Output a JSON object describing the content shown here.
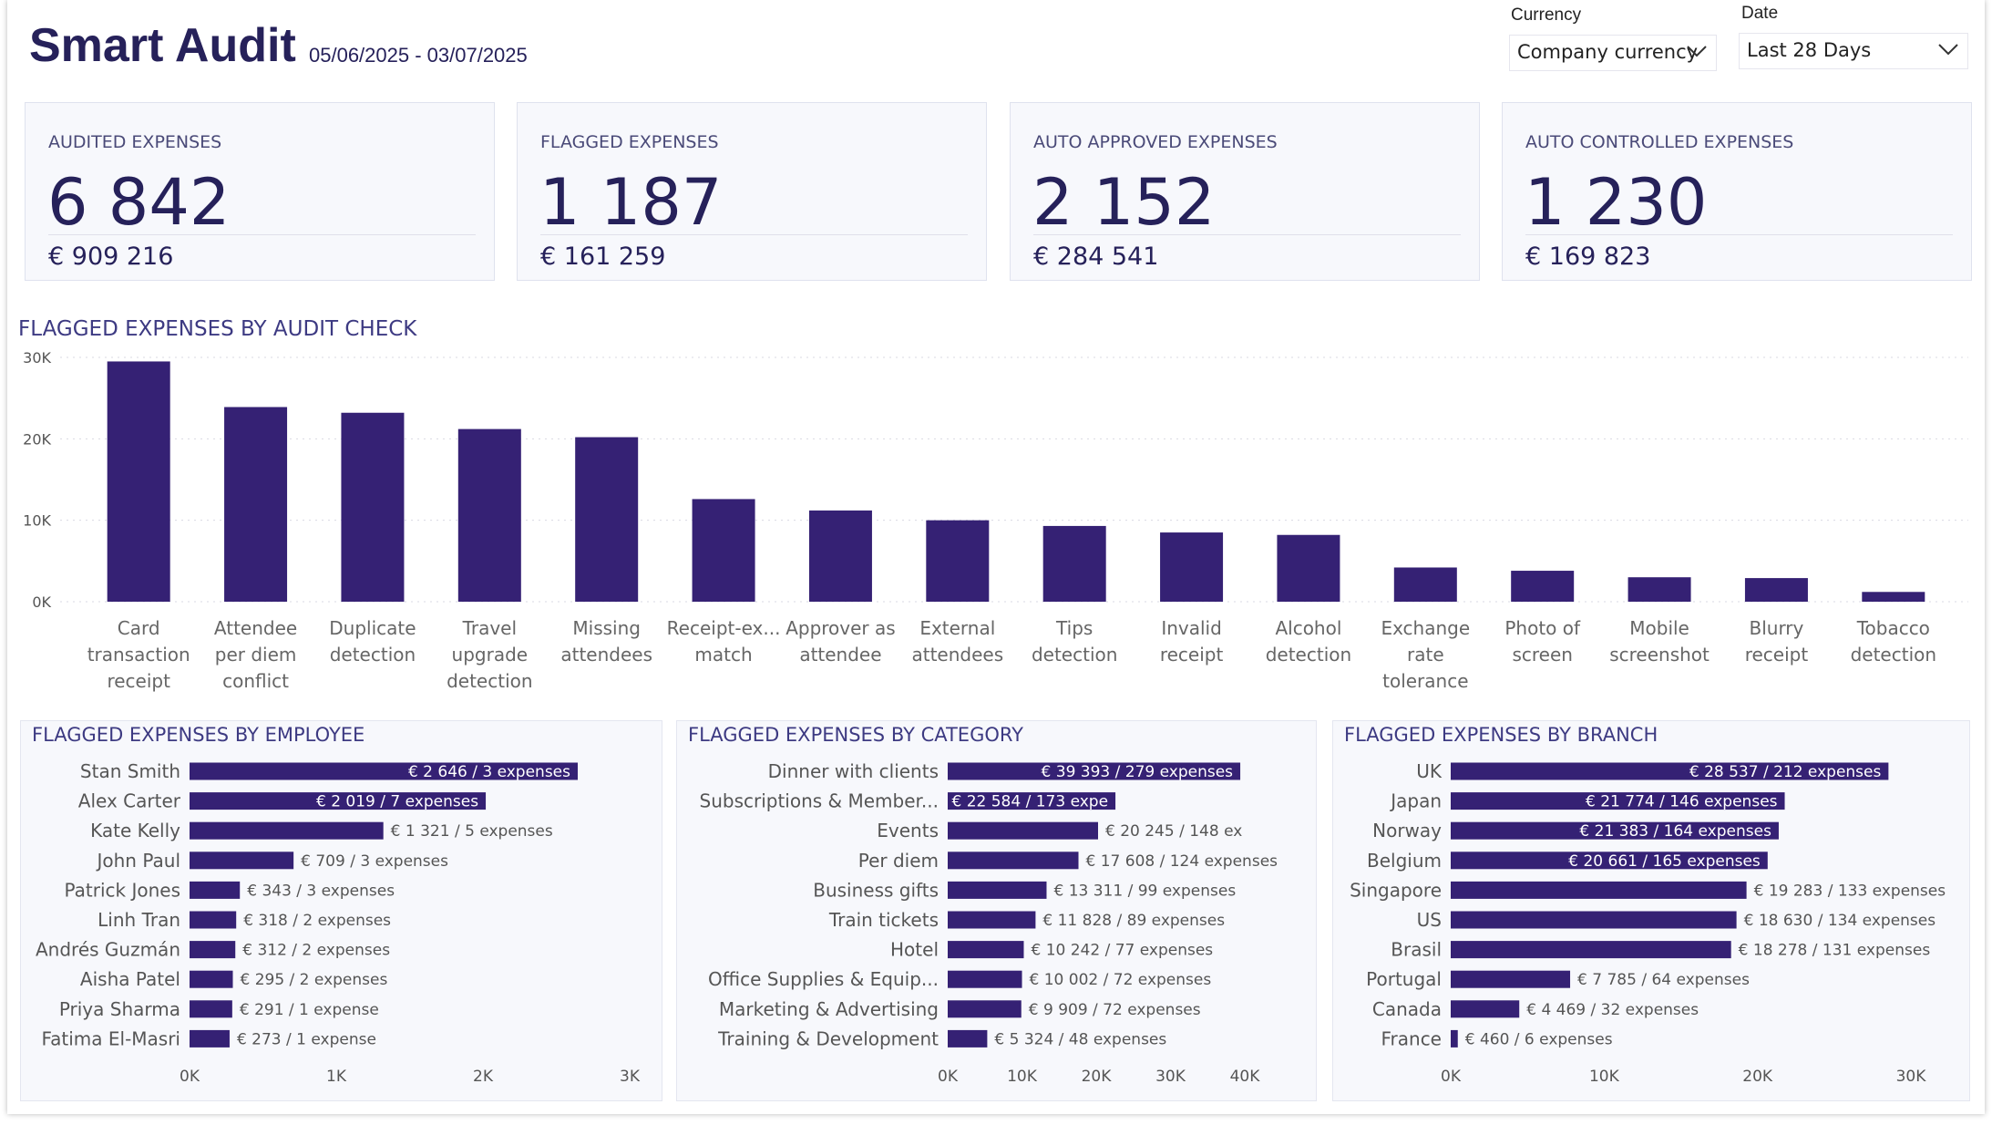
{
  "header": {
    "title": "Smart Audit",
    "date_range": "05/06/2025 - 03/07/2025"
  },
  "filters": {
    "currency": {
      "label": "Currency",
      "value": "Company currency"
    },
    "date": {
      "label": "Date",
      "value": "Last 28 Days"
    }
  },
  "kpis": [
    {
      "label": "AUDITED EXPENSES",
      "count": "6 842",
      "amount": "€ 909 216"
    },
    {
      "label": "FLAGGED EXPENSES",
      "count": "1 187",
      "amount": "€ 161 259"
    },
    {
      "label": "AUTO APPROVED EXPENSES",
      "count": "2 152",
      "amount": "€ 284 541"
    },
    {
      "label": "AUTO CONTROLLED EXPENSES",
      "count": "1 230",
      "amount": "€ 169 823"
    }
  ],
  "colors": {
    "bar": "#352174",
    "text": "#26215a",
    "panel_bg": "#f7f8fc",
    "grid": "#d9d9e3"
  },
  "chart_data": [
    {
      "type": "bar",
      "title": "FLAGGED EXPENSES BY AUDIT CHECK",
      "categories": [
        [
          "Card",
          "transaction",
          "receipt"
        ],
        [
          "Attendee",
          "per diem",
          "conflict"
        ],
        [
          "Duplicate",
          "detection"
        ],
        [
          "Travel",
          "upgrade",
          "detection"
        ],
        [
          "Missing",
          "attendees"
        ],
        [
          "Receipt-ex...",
          "match"
        ],
        [
          "Approver as",
          "attendee"
        ],
        [
          "External",
          "attendees"
        ],
        [
          "Tips",
          "detection"
        ],
        [
          "Invalid",
          "receipt"
        ],
        [
          "Alcohol",
          "detection"
        ],
        [
          "Exchange",
          "rate",
          "tolerance"
        ],
        [
          "Photo of",
          "screen"
        ],
        [
          "Mobile",
          "screenshot"
        ],
        [
          "Blurry",
          "receipt"
        ],
        [
          "Tobacco",
          "detection"
        ]
      ],
      "values": [
        29500,
        23900,
        23200,
        21200,
        20200,
        12600,
        11200,
        10000,
        9300,
        8500,
        8200,
        4200,
        3800,
        3000,
        2900,
        1200
      ],
      "yticks": [
        "0K",
        "10K",
        "20K",
        "30K"
      ],
      "ylim": [
        0,
        30000
      ],
      "grid": true
    },
    {
      "type": "bar",
      "title": "FLAGGED EXPENSES BY EMPLOYEE",
      "orientation": "horizontal",
      "categories": [
        "Stan Smith",
        "Alex Carter",
        "Kate Kelly",
        "John Paul",
        "Patrick Jones",
        "Linh Tran",
        "Andrés Guzmán",
        "Aisha Patel",
        "Priya Sharma",
        "Fatima El-Masri"
      ],
      "values": [
        2646,
        2019,
        1321,
        709,
        343,
        318,
        312,
        295,
        291,
        273
      ],
      "labels": [
        "€ 2 646 / 3 expenses",
        "€ 2 019 / 7 expenses",
        "€ 1 321 / 5 expenses",
        "€ 709 / 3 expenses",
        "€ 343 / 3 expenses",
        "€ 318 / 2 expenses",
        "€ 312 / 2 expenses",
        "€ 295 / 2 expenses",
        "€ 291 / 1 expense",
        "€ 273 / 1 expense"
      ],
      "xticks": [
        "0K",
        "1K",
        "2K",
        "3K"
      ],
      "xlim": [
        0,
        3000
      ]
    },
    {
      "type": "bar",
      "title": "FLAGGED EXPENSES BY CATEGORY",
      "orientation": "horizontal",
      "categories": [
        "Dinner with clients",
        "Subscriptions & Member...",
        "Events",
        "Per diem",
        "Business gifts",
        "Train tickets",
        "Hotel",
        "Office Supplies & Equip...",
        "Marketing & Advertising",
        "Training & Development"
      ],
      "values": [
        39393,
        22584,
        20245,
        17608,
        13311,
        11828,
        10242,
        10002,
        9909,
        5324
      ],
      "labels": [
        "€ 39 393 / 279 expenses",
        "€ 22 584 / 173 expe",
        "€ 20 245 / 148 ex",
        "€ 17 608 / 124 expenses",
        "€ 13 311 / 99 expenses",
        "€ 11 828 / 89 expenses",
        "€ 10 242 / 77 expenses",
        "€ 10 002 / 72 expenses",
        "€ 9 909 / 72 expenses",
        "€ 5 324 / 48 expenses"
      ],
      "xticks": [
        "0K",
        "10K",
        "20K",
        "30K",
        "40K"
      ],
      "xlim": [
        0,
        40000
      ]
    },
    {
      "type": "bar",
      "title": "FLAGGED EXPENSES BY BRANCH",
      "orientation": "horizontal",
      "categories": [
        "UK",
        "Japan",
        "Norway",
        "Belgium",
        "Singapore",
        "US",
        "Brasil",
        "Portugal",
        "Canada",
        "France"
      ],
      "values": [
        28537,
        21774,
        21383,
        20661,
        19283,
        18630,
        18278,
        7785,
        4469,
        460
      ],
      "labels": [
        "€ 28 537 / 212 expenses",
        "€ 21 774 / 146 expenses",
        "€ 21 383 / 164 expenses",
        "€ 20 661 / 165 expenses",
        "€ 19 283 / 133 expenses",
        "€ 18 630 / 134 expenses",
        "€ 18 278 / 131 expenses",
        "€ 7 785 / 64 expenses",
        "€ 4 469 / 32 expenses",
        "€ 460 / 6 expenses"
      ],
      "xticks": [
        "0K",
        "10K",
        "20K",
        "30K"
      ],
      "xlim": [
        0,
        30000
      ]
    }
  ]
}
